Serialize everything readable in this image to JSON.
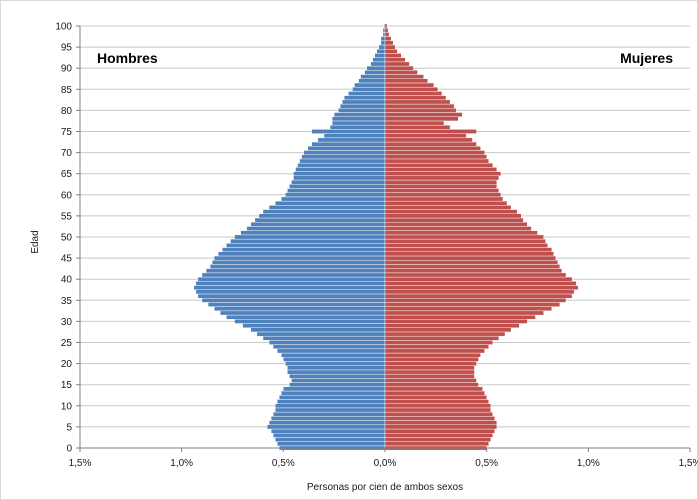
{
  "chart_data": {
    "type": "bar",
    "orientation": "horizontal-population-pyramid",
    "ylabel": "Edad",
    "xlabel": "Personas por cien de ambos sexos",
    "left_label": "Hombres",
    "right_label": "Mujeres",
    "y_ticks": [
      "0",
      "5",
      "10",
      "15",
      "20",
      "25",
      "30",
      "35",
      "40",
      "45",
      "50",
      "55",
      "60",
      "65",
      "70",
      "75",
      "80",
      "85",
      "90",
      "95",
      "100"
    ],
    "x_ticks": [
      "1,5%",
      "1,0%",
      "0,5%",
      "0,0%",
      "0,5%",
      "1,0%",
      "1,5%"
    ],
    "xlim": [
      -1.5,
      1.5
    ],
    "ylim": [
      0,
      100
    ],
    "grid": "horizontal",
    "colors": {
      "men": "#4f81bd",
      "women": "#c0504d",
      "bar_edge": "#ffffff"
    },
    "ages": [
      0,
      1,
      2,
      3,
      4,
      5,
      6,
      7,
      8,
      9,
      10,
      11,
      12,
      13,
      14,
      15,
      16,
      17,
      18,
      19,
      20,
      21,
      22,
      23,
      24,
      25,
      26,
      27,
      28,
      29,
      30,
      31,
      32,
      33,
      34,
      35,
      36,
      37,
      38,
      39,
      40,
      41,
      42,
      43,
      44,
      45,
      46,
      47,
      48,
      49,
      50,
      51,
      52,
      53,
      54,
      55,
      56,
      57,
      58,
      59,
      60,
      61,
      62,
      63,
      64,
      65,
      66,
      67,
      68,
      69,
      70,
      71,
      72,
      73,
      74,
      75,
      76,
      77,
      78,
      79,
      80,
      81,
      82,
      83,
      84,
      85,
      86,
      87,
      88,
      89,
      90,
      91,
      92,
      93,
      94,
      95,
      96,
      97,
      98,
      99,
      100
    ],
    "series": [
      {
        "name": "Hombres",
        "values": [
          0.52,
          0.53,
          0.54,
          0.55,
          0.56,
          0.58,
          0.57,
          0.56,
          0.55,
          0.54,
          0.54,
          0.53,
          0.52,
          0.51,
          0.5,
          0.47,
          0.46,
          0.47,
          0.48,
          0.48,
          0.49,
          0.5,
          0.51,
          0.53,
          0.55,
          0.57,
          0.6,
          0.63,
          0.66,
          0.7,
          0.74,
          0.78,
          0.81,
          0.84,
          0.87,
          0.9,
          0.92,
          0.93,
          0.94,
          0.93,
          0.92,
          0.9,
          0.88,
          0.86,
          0.85,
          0.84,
          0.82,
          0.8,
          0.78,
          0.76,
          0.74,
          0.71,
          0.68,
          0.66,
          0.64,
          0.62,
          0.6,
          0.57,
          0.54,
          0.51,
          0.49,
          0.48,
          0.47,
          0.46,
          0.45,
          0.45,
          0.44,
          0.43,
          0.42,
          0.41,
          0.4,
          0.38,
          0.36,
          0.33,
          0.3,
          0.36,
          0.27,
          0.26,
          0.26,
          0.25,
          0.23,
          0.22,
          0.21,
          0.2,
          0.18,
          0.16,
          0.15,
          0.13,
          0.12,
          0.1,
          0.09,
          0.07,
          0.06,
          0.05,
          0.04,
          0.03,
          0.02,
          0.02,
          0.01,
          0.01,
          0.005
        ]
      },
      {
        "name": "Mujeres",
        "values": [
          0.5,
          0.51,
          0.52,
          0.53,
          0.54,
          0.55,
          0.55,
          0.54,
          0.53,
          0.52,
          0.52,
          0.51,
          0.5,
          0.49,
          0.48,
          0.46,
          0.45,
          0.44,
          0.44,
          0.44,
          0.45,
          0.46,
          0.47,
          0.49,
          0.51,
          0.53,
          0.56,
          0.59,
          0.62,
          0.66,
          0.7,
          0.74,
          0.78,
          0.82,
          0.86,
          0.89,
          0.92,
          0.93,
          0.95,
          0.94,
          0.92,
          0.89,
          0.87,
          0.86,
          0.85,
          0.84,
          0.83,
          0.82,
          0.8,
          0.79,
          0.78,
          0.75,
          0.72,
          0.7,
          0.68,
          0.67,
          0.65,
          0.62,
          0.6,
          0.58,
          0.57,
          0.56,
          0.55,
          0.55,
          0.56,
          0.57,
          0.55,
          0.53,
          0.51,
          0.5,
          0.49,
          0.47,
          0.45,
          0.43,
          0.4,
          0.45,
          0.32,
          0.29,
          0.36,
          0.38,
          0.35,
          0.34,
          0.32,
          0.3,
          0.28,
          0.26,
          0.24,
          0.21,
          0.19,
          0.16,
          0.14,
          0.12,
          0.1,
          0.08,
          0.06,
          0.05,
          0.04,
          0.03,
          0.02,
          0.015,
          0.01
        ]
      }
    ]
  }
}
